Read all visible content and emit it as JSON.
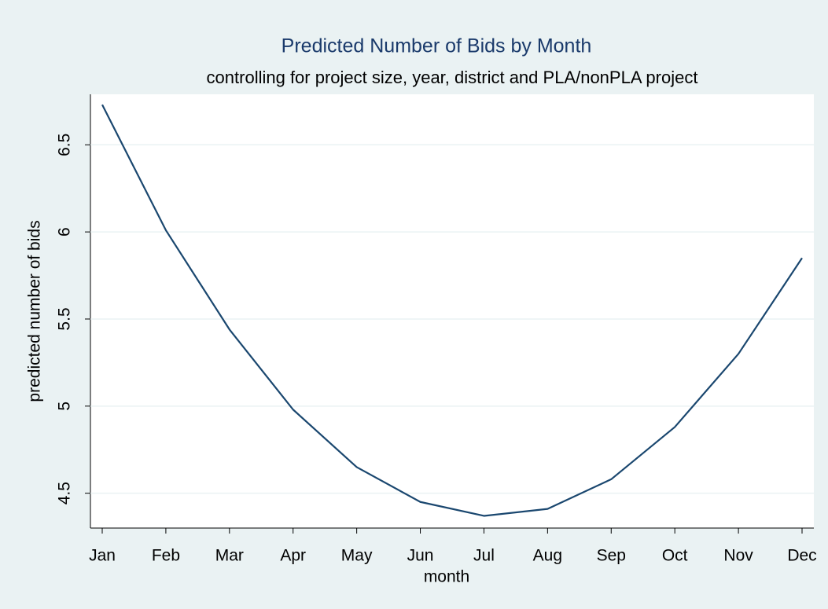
{
  "chart_data": {
    "type": "line",
    "title": "Predicted Number of Bids by Month",
    "subtitle": "controlling for project size, year, district and PLA/nonPLA project",
    "x_label": "month",
    "y_label": "predicted number of bids",
    "categories": [
      "Jan",
      "Feb",
      "Mar",
      "Apr",
      "May",
      "Jun",
      "Jul",
      "Aug",
      "Sep",
      "Oct",
      "Nov",
      "Dec"
    ],
    "series": [
      {
        "name": "predicted number of bids",
        "color": "#1a476f",
        "values": [
          6.73,
          6.01,
          5.44,
          4.98,
          4.65,
          4.45,
          4.37,
          4.41,
          4.58,
          4.88,
          5.3,
          5.85
        ]
      }
    ],
    "ylim": [
      4.3,
      6.79
    ],
    "yticks": [
      4.5,
      5,
      5.5,
      6,
      6.5
    ],
    "grid": true
  }
}
